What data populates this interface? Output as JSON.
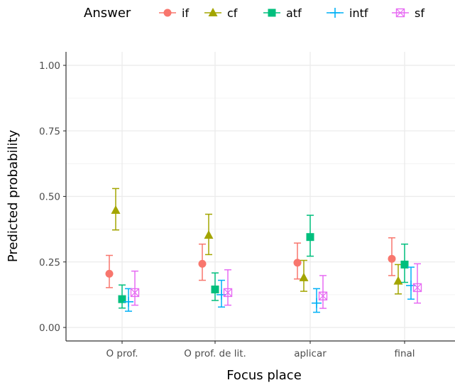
{
  "chart_data": {
    "type": "scatter",
    "title": "",
    "xlabel": "Focus place",
    "ylabel": "Predicted probability",
    "categories": [
      "O prof.",
      "O prof. de lit.",
      "aplicar",
      "final"
    ],
    "ylim": [
      0,
      1
    ],
    "yticks": [
      0,
      0.25,
      0.5,
      0.75,
      1
    ],
    "ytick_labels": [
      "0.00",
      "0.25",
      "0.50",
      "0.75",
      "1.00"
    ],
    "grid": true,
    "legend": {
      "title": "Answer",
      "position": "top",
      "labels": [
        "if",
        "cf",
        "atf",
        "intf",
        "sf"
      ]
    },
    "series": [
      {
        "name": "if",
        "color": "#F8766D",
        "shape": "circle",
        "values": [
          0.205,
          0.243,
          0.247,
          0.262
        ],
        "lower": [
          0.152,
          0.18,
          0.185,
          0.198
        ],
        "upper": [
          0.275,
          0.318,
          0.322,
          0.342
        ]
      },
      {
        "name": "cf",
        "color": "#A3A500",
        "shape": "triangle",
        "values": [
          0.447,
          0.352,
          0.19,
          0.177
        ],
        "lower": [
          0.372,
          0.278,
          0.138,
          0.128
        ],
        "upper": [
          0.53,
          0.432,
          0.256,
          0.24
        ]
      },
      {
        "name": "atf",
        "color": "#00BF7D",
        "shape": "square",
        "values": [
          0.108,
          0.145,
          0.345,
          0.24
        ],
        "lower": [
          0.074,
          0.103,
          0.272,
          0.172
        ],
        "upper": [
          0.162,
          0.208,
          0.428,
          0.318
        ]
      },
      {
        "name": "intf",
        "color": "#00B0F6",
        "shape": "plus",
        "values": [
          0.098,
          0.125,
          0.093,
          0.16
        ],
        "lower": [
          0.062,
          0.078,
          0.058,
          0.108
        ],
        "upper": [
          0.148,
          0.18,
          0.148,
          0.23
        ]
      },
      {
        "name": "sf",
        "color": "#E76BF3",
        "shape": "boxcross",
        "values": [
          0.133,
          0.133,
          0.12,
          0.152
        ],
        "lower": [
          0.085,
          0.085,
          0.073,
          0.093
        ],
        "upper": [
          0.215,
          0.22,
          0.198,
          0.243
        ]
      }
    ]
  }
}
